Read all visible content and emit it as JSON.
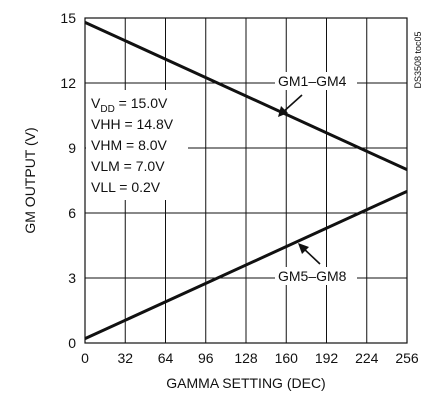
{
  "chart_data": {
    "type": "line",
    "xlabel": "GAMMA SETTING (DEC)",
    "ylabel": "GM OUTPUT (V)",
    "xlim": [
      0,
      256
    ],
    "ylim": [
      0,
      15
    ],
    "xticks": [
      0,
      32,
      64,
      96,
      128,
      160,
      192,
      224,
      256
    ],
    "yticks": [
      0,
      3,
      6,
      9,
      12,
      15
    ],
    "grid": true,
    "series": [
      {
        "name": "GM1–GM4",
        "x": [
          0,
          256
        ],
        "y": [
          14.8,
          8.0
        ]
      },
      {
        "name": "GM5–GM8",
        "x": [
          0,
          256
        ],
        "y": [
          0.2,
          7.0
        ]
      }
    ],
    "conditions": {
      "vdd_label": "V",
      "vdd_sub": "DD",
      "vdd_value": " = 15.0V",
      "vhh": "VHH = 14.8V",
      "vhm": "VHM = 8.0V",
      "vlm": "VLM = 7.0V",
      "vll": "VLL = 0.2V"
    },
    "figure_id": "DS3508 toc05"
  }
}
